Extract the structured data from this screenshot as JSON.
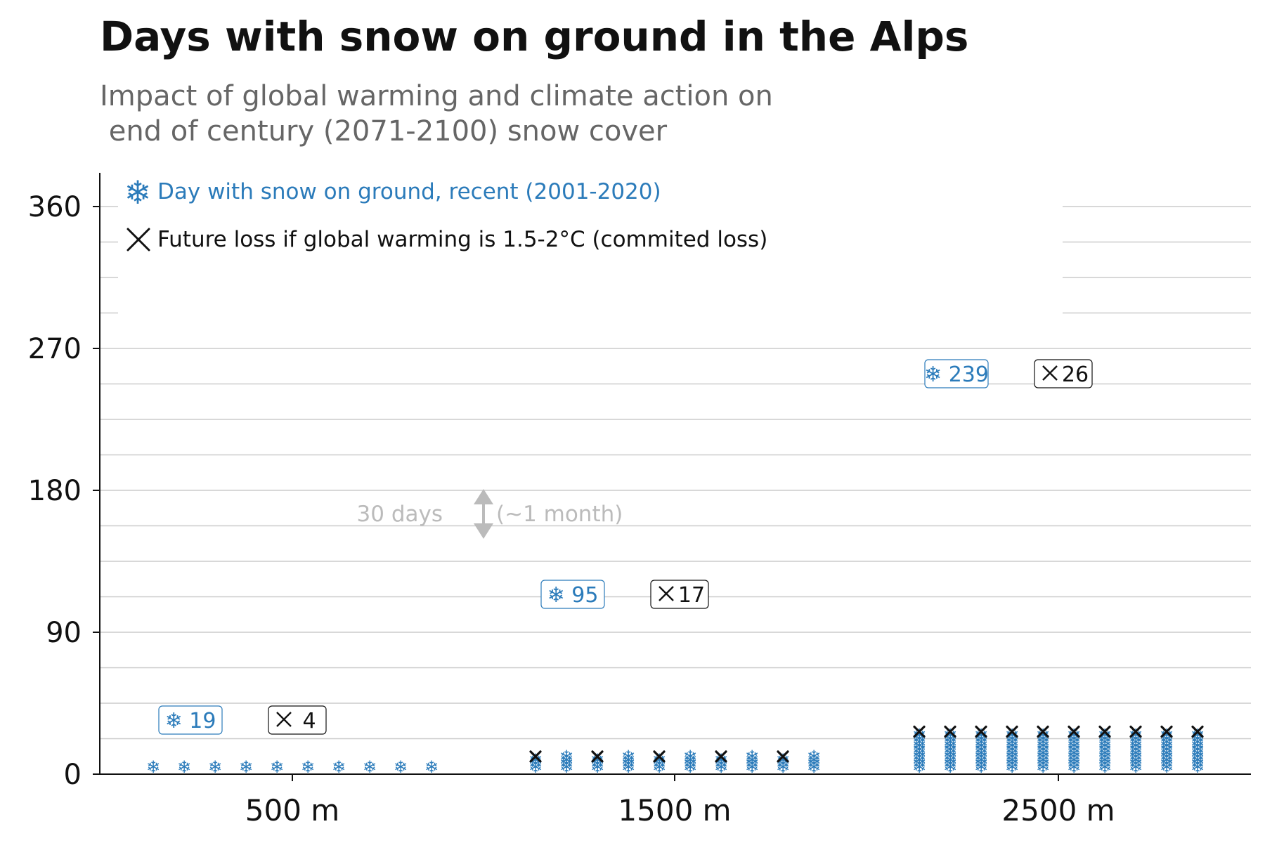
{
  "title": "Days with snow on ground in the Alps",
  "subtitle": "Impact of global warming and climate action on\n end of century (2071-2100) snow cover",
  "legend": {
    "snow_icon": "snowflake-icon",
    "snow_label": "Day with snow on ground, recent (2001-2020)",
    "loss_icon": "cross-icon",
    "loss_label": "Future loss if global warming is 1.5-2°C (commited loss)"
  },
  "scale_note": {
    "left": "30 days",
    "right": "(~1 month)"
  },
  "colors": {
    "snow": "#2b7bba",
    "loss": "#111111",
    "grid": "#cccccc",
    "note": "#bbbbbb"
  },
  "chart_data": {
    "type": "bar",
    "title": "Days with snow on ground in the Alps",
    "subtitle": "Impact of global warming and climate action on end of century (2071-2100) snow cover",
    "categories": [
      "500 m",
      "1500 m",
      "2500 m"
    ],
    "yticks": [
      0,
      90,
      180,
      270,
      360
    ],
    "ylim": [
      0,
      360
    ],
    "grid": true,
    "legend_position": "top-left",
    "series": [
      {
        "name": "Day with snow on ground, recent (2001-2020)",
        "values": [
          19,
          95,
          239
        ]
      },
      {
        "name": "Future loss if global warming is 1.5-2°C (commited loss)",
        "values": [
          4,
          17,
          26
        ]
      }
    ],
    "value_labels": {
      "snow": [
        "19",
        "95",
        "239"
      ],
      "loss": [
        "4",
        "17",
        "26"
      ]
    }
  }
}
